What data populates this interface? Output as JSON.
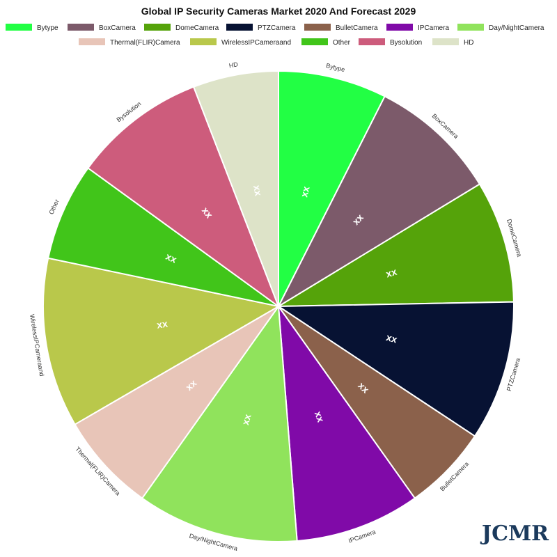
{
  "chart_data": {
    "type": "pie",
    "title": "Global IP Security Cameras Market 2020 And Forecast 2029",
    "categories": [
      "Bytype",
      "BoxCamera",
      "DomeCamera",
      "PTZCamera",
      "BulletCamera",
      "IPCamera",
      "Day/NightCamera",
      "Thermal(FLIR)Camera",
      "WirelessIPCameraand",
      "Other",
      "Bysolution",
      "HD"
    ],
    "values": [
      8,
      9.5,
      9,
      10.3,
      6.3,
      9.2,
      11.9,
      7.3,
      12.5,
      7.2,
      9.8,
      6.3
    ],
    "colors": [
      "#22ff44",
      "#7c5a6a",
      "#55a30a",
      "#071233",
      "#8b614b",
      "#800aa8",
      "#90e35c",
      "#e8c5b8",
      "#b9c84b",
      "#41c51a",
      "#cd5c7c",
      "#dde3c8"
    ],
    "data_labels": [
      "xx",
      "xx",
      "xx",
      "xx",
      "xx",
      "xx",
      "xx",
      "xx",
      "xx",
      "xx",
      "xx",
      "xx"
    ],
    "legend_placement": "top"
  },
  "logo": {
    "text": "JCMR"
  }
}
